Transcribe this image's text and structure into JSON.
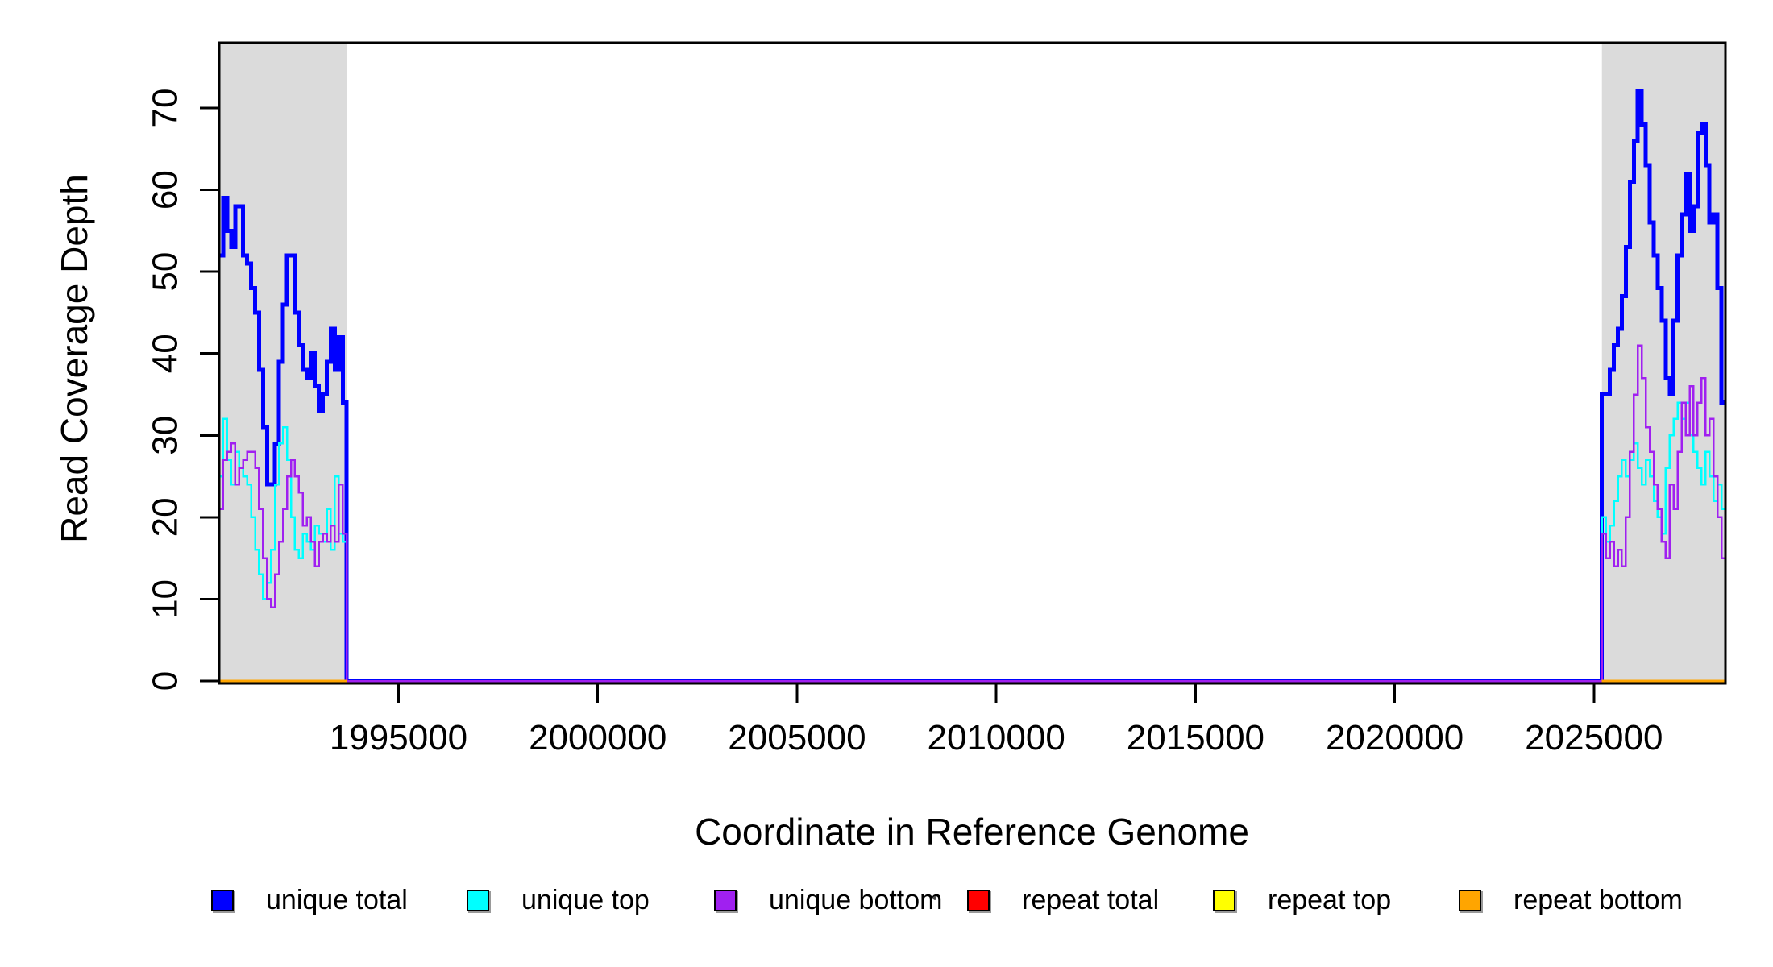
{
  "figure": {
    "background": "#FFFFFF",
    "plot_border_color": "#000000",
    "highlight_color": "#DBDBDB"
  },
  "chart_data": {
    "type": "line",
    "subtype": "step",
    "title": "",
    "xlabel": "Coordinate in Reference Genome",
    "ylabel": "Read Coverage Depth",
    "xlim": [
      1990500,
      2028300
    ],
    "ylim": [
      0,
      78
    ],
    "x_ticks": [
      1995000,
      2000000,
      2005000,
      2010000,
      2015000,
      2020000,
      2025000
    ],
    "y_ticks": [
      0,
      10,
      20,
      30,
      40,
      50,
      60,
      70
    ],
    "grid": false,
    "legend_position": "bottom",
    "window_size_bp": 100,
    "highlight_regions": [
      {
        "name": "left-coverage-region",
        "x0": 1990500,
        "x1": 1993700
      },
      {
        "name": "right-coverage-region",
        "x0": 2025200,
        "x1": 2028300
      }
    ],
    "series": [
      {
        "name": "unique total",
        "color": "#0000FF",
        "width": 5,
        "regions": [
          {
            "start": 1990500,
            "step": 100,
            "values": [
              52,
              59,
              55,
              53,
              58,
              58,
              52,
              51,
              48,
              45,
              38,
              31,
              24,
              24,
              29,
              39,
              46,
              52,
              52,
              45,
              41,
              38,
              37,
              40,
              36,
              33,
              35,
              39,
              43,
              38,
              42,
              34
            ]
          },
          {
            "start": 1993700,
            "step": 31500,
            "values": [
              0
            ]
          },
          {
            "start": 2025200,
            "step": 100,
            "values": [
              35,
              35,
              38,
              41,
              43,
              47,
              53,
              61,
              66,
              72,
              68,
              63,
              56,
              52,
              48,
              44,
              37,
              35,
              44,
              52,
              57,
              62,
              55,
              58,
              67,
              68,
              63,
              56,
              57,
              48,
              34
            ]
          }
        ]
      },
      {
        "name": "unique top",
        "color": "#00FFFF",
        "width": 2.5,
        "regions": [
          {
            "start": 1990500,
            "step": 100,
            "values": [
              25,
              32,
              27,
              24,
              28,
              26,
              25,
              24,
              20,
              16,
              13,
              10,
              12,
              16,
              24,
              29,
              31,
              27,
              20,
              16,
              15,
              18,
              17,
              16,
              19,
              18,
              17,
              21,
              16,
              25,
              18,
              17
            ]
          },
          {
            "start": 1993700,
            "step": 31500,
            "values": [
              0
            ]
          },
          {
            "start": 2025200,
            "step": 100,
            "values": [
              20,
              17,
              19,
              22,
              25,
              27,
              25,
              27,
              29,
              26,
              24,
              27,
              25,
              22,
              20,
              18,
              26,
              30,
              32,
              34,
              32,
              34,
              30,
              28,
              26,
              24,
              28,
              25,
              22,
              24,
              21
            ]
          }
        ]
      },
      {
        "name": "unique bottom",
        "color": "#A020F0",
        "width": 2.5,
        "regions": [
          {
            "start": 1990500,
            "step": 100,
            "values": [
              21,
              27,
              28,
              29,
              24,
              26,
              27,
              28,
              28,
              26,
              21,
              15,
              10,
              9,
              13,
              17,
              21,
              25,
              27,
              25,
              23,
              19,
              20,
              17,
              14,
              17,
              18,
              17,
              19,
              17,
              24,
              18
            ]
          },
          {
            "start": 1993700,
            "step": 31500,
            "values": [
              0
            ]
          },
          {
            "start": 2025200,
            "step": 100,
            "values": [
              18,
              15,
              17,
              14,
              16,
              14,
              20,
              28,
              35,
              41,
              37,
              31,
              28,
              24,
              21,
              17,
              15,
              24,
              21,
              28,
              34,
              30,
              36,
              30,
              34,
              37,
              30,
              32,
              25,
              20,
              15
            ]
          }
        ]
      },
      {
        "name": "repeat total",
        "color": "#FF0000",
        "width": 3,
        "regions": [
          {
            "start": 1990500,
            "step": 3200,
            "values": [
              0
            ]
          },
          {
            "start": 2025200,
            "step": 3100,
            "values": [
              0
            ]
          }
        ]
      },
      {
        "name": "repeat top",
        "color": "#FFFF00",
        "width": 3,
        "regions": [
          {
            "start": 1990500,
            "step": 3200,
            "values": [
              0
            ]
          },
          {
            "start": 2025200,
            "step": 3100,
            "values": [
              0
            ]
          }
        ]
      },
      {
        "name": "repeat bottom",
        "color": "#FFA500",
        "width": 3,
        "regions": [
          {
            "start": 1990500,
            "step": 3200,
            "values": [
              0
            ]
          },
          {
            "start": 2025200,
            "step": 3100,
            "values": [
              0
            ]
          }
        ]
      }
    ]
  },
  "legend": {
    "items": [
      {
        "label": "unique total",
        "color": "#0000FF"
      },
      {
        "label": "unique top",
        "color": "#00FFFF"
      },
      {
        "label": "unique bottom",
        "color": "#A020F0"
      },
      {
        "label": "repeat total",
        "color": "#FF0000"
      },
      {
        "label": "repeat top",
        "color": "#FFFF00"
      },
      {
        "label": "repeat bottom",
        "color": "#FFA500"
      }
    ]
  }
}
